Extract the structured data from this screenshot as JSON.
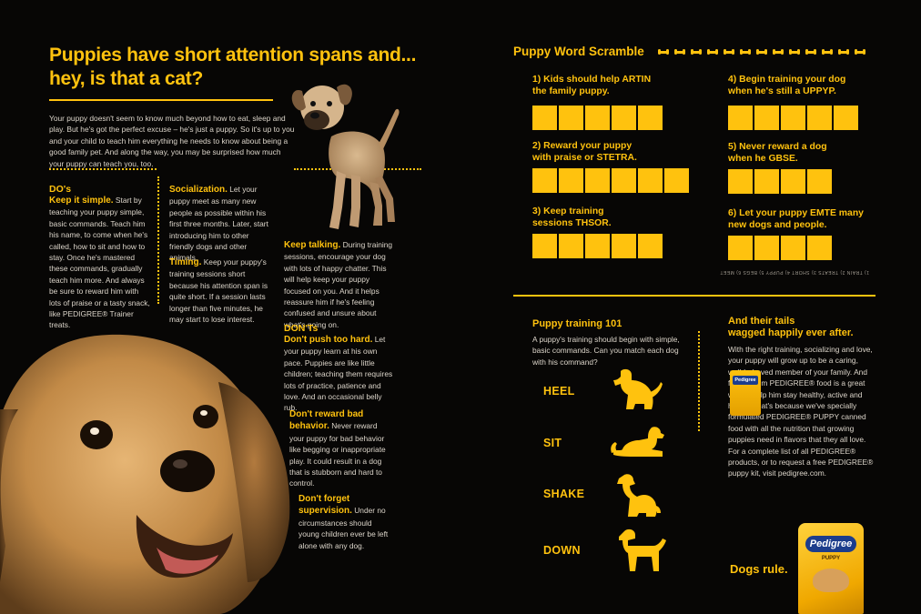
{
  "left": {
    "headline_line1": "Puppies have short attention spans and...",
    "headline_line2": "hey, is that a cat?",
    "intro": "Your puppy doesn't seem to know much beyond how to eat, sleep and play. But he's got the perfect excuse – he's just a puppy. So it's up to you and your child to teach him everything he needs to know about being a good family pet. And along the way, you may be surprised how much your puppy can teach you, too.",
    "dos_header": "DO's",
    "keep_simple_lead": "Keep it simple.",
    "keep_simple_text": " Start by teaching your puppy simple, basic commands. Teach him his name, to come when he's called, how to sit and how to stay. Once he's mastered these commands, gradually teach him more. And always be sure to reward him with lots of praise or a tasty snack, like PEDIGREE® Trainer treats.",
    "socialization_lead": "Socialization.",
    "socialization_text": " Let your puppy meet as many new people as possible within his first three months. Later, start introducing him to other friendly dogs and other animals.",
    "timing_lead": "Timing.",
    "timing_text": " Keep your puppy's training sessions short because his attention span is quite short. If a session lasts longer than five minutes, he may start to lose interest.",
    "keep_talking_lead": "Keep talking.",
    "keep_talking_text": " During training sessions, encourage your dog with lots of happy chatter. This will help keep your puppy focused on you. And it helps reassure him if he's feeling confused and unsure about what's going on.",
    "donts_header": "DON'Ts",
    "dont_push_lead": "Don't push too hard.",
    "dont_push_text": " Let your puppy learn at his own pace. Puppies are like little children; teaching them requires lots of practice, patience and love. And an occasional belly rub.",
    "dont_reward_lead": "Don't reward bad behavior.",
    "dont_reward_text": " Never reward your puppy for bad behavior like begging or inappropriate play. It could result in a dog that is stubborn and hard to control.",
    "dont_forget_lead": "Don't forget supervision.",
    "dont_forget_text": " Under no circumstances should young children ever be left alone with any dog."
  },
  "scramble": {
    "title": "Puppy Word Scramble",
    "questions": [
      {
        "line1": "1) Kids should help ARTIN",
        "line2": "the family puppy.",
        "boxes": 5
      },
      {
        "line1": "2) Reward your puppy",
        "line2": "with praise or STETRA.",
        "boxes": 6
      },
      {
        "line1": "3) Keep training",
        "line2": "sessions THSOR.",
        "boxes": 5
      },
      {
        "line1": "4) Begin training your dog",
        "line2": "when he's still a UPPYP.",
        "boxes": 5
      },
      {
        "line1": "5) Never reward a dog",
        "line2": "when he GBSE.",
        "boxes": 4
      },
      {
        "line1": "6) Let your puppy EMTE many",
        "line2": "new dogs and people.",
        "boxes": 4
      }
    ],
    "answers_upside_down": "1) TRAIN   2) TREATS   3) SHORT   4) PUPPY   5) BEGS   6) MEET"
  },
  "training101": {
    "title": "Puppy training 101",
    "text": "A puppy's training should begin with simple, basic commands. Can you match each dog with his command?",
    "commands": [
      "HEEL",
      "SIT",
      "SHAKE",
      "DOWN"
    ]
  },
  "tails": {
    "title_line1": "And their tails",
    "title_line2": "wagged happily ever after.",
    "text": "With the right training, socializing and love, your puppy will grow up to be a caring, well-behaved member of your family. And feeding him PEDIGREE® food is a great way to help him stay healthy, active and happy. That's because we've specially formulated PEDIGREE® PUPPY canned food with all the nutrition that growing puppies need in flavors that they all love. For a complete list of all PEDIGREE® products, or to request a free PEDIGREE® puppy kit, visit pedigree.com.",
    "dogs_rule": "Dogs rule.",
    "can_brand": "Pedigree",
    "bag_brand": "Pedigree",
    "bag_sub": "PUPPY"
  },
  "colors": {
    "accent": "#ffc20e",
    "background": "#070605",
    "body_text": "#ddd6cb"
  }
}
